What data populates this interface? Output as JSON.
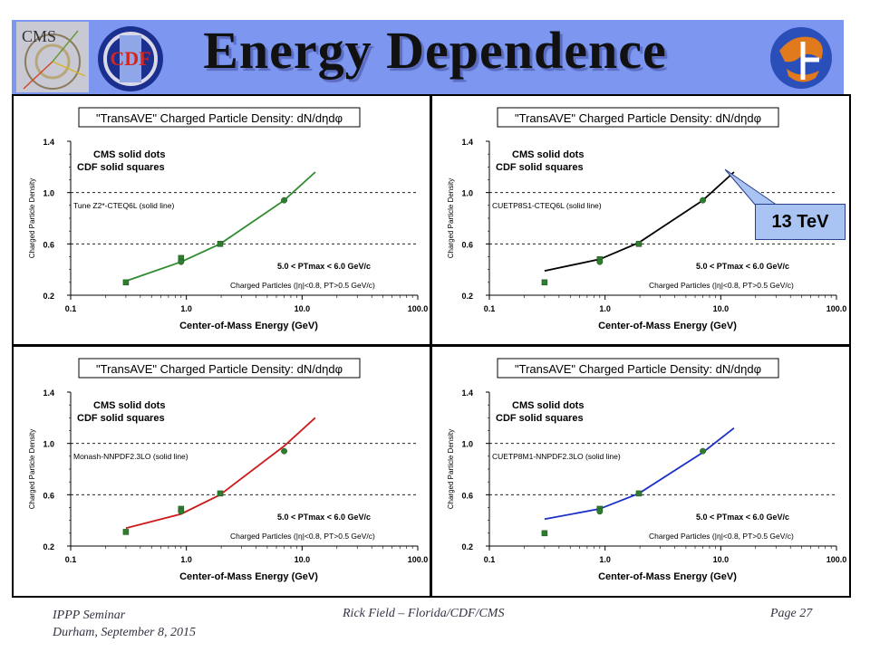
{
  "slide": {
    "title": "Energy Dependence",
    "footer_left_1": "IPPP Seminar",
    "footer_left_2": "Durham, September 8, 2015",
    "footer_center": "Rick Field – Florida/CDF/CMS",
    "footer_right": "Page 27",
    "callout": "13 TeV",
    "logos": {
      "cms": "CMS",
      "cdf": "CDF"
    }
  },
  "chart_data": [
    {
      "type": "line",
      "title": "\"TransAVE\" Charged Particle Density: dN/dηdφ",
      "xlabel": "Center-of-Mass Energy  (GeV)",
      "ylabel": "Charged Particle Density",
      "x_scale": "log",
      "xlim": [
        0.1,
        100.0
      ],
      "ylim": [
        0.2,
        1.4
      ],
      "x_ticks": [
        "0.1",
        "1.0",
        "10.0",
        "100.0"
      ],
      "y_ticks": [
        "0.2",
        "0.6",
        "1.0",
        "1.4"
      ],
      "legend_text": [
        "CMS solid dots",
        "CDF solid squares"
      ],
      "tune_label": "Tune Z2*-CTEQ6L (solid line)",
      "ptmax_label": "5.0 < PTmax < 6.0 GeV/c",
      "cuts_label": "Charged Particles (|η|<0.8, PT>0.5 GeV/c)",
      "line_color": "#2e8b2e",
      "series": [
        {
          "name": "Tune Z2*-CTEQ6L (solid line)",
          "x": [
            0.3,
            0.9,
            1.96,
            7.0,
            13.0
          ],
          "y": [
            0.31,
            0.46,
            0.6,
            0.94,
            1.16
          ]
        },
        {
          "name": "CMS solid dots",
          "x": [
            0.9,
            7.0
          ],
          "y": [
            0.46,
            0.94
          ]
        },
        {
          "name": "CDF solid squares",
          "x": [
            0.3,
            0.9,
            1.96
          ],
          "y": [
            0.3,
            0.49,
            0.6
          ]
        }
      ]
    },
    {
      "type": "line",
      "title": "\"TransAVE\" Charged Particle Density: dN/dηdφ",
      "xlabel": "Center-of-Mass Energy  (GeV)",
      "ylabel": "Charged Particle Density",
      "x_scale": "log",
      "xlim": [
        0.1,
        100.0
      ],
      "ylim": [
        0.2,
        1.4
      ],
      "x_ticks": [
        "0.1",
        "1.0",
        "10.0",
        "100.0"
      ],
      "y_ticks": [
        "0.2",
        "0.6",
        "1.0",
        "1.4"
      ],
      "legend_text": [
        "CMS solid dots",
        "CDF solid squares"
      ],
      "tune_label": "CUETP8S1-CTEQ6L (solid line)",
      "ptmax_label": "5.0 < PTmax < 6.0 GeV/c",
      "cuts_label": "Charged Particles (|η|<0.8, PT>0.5 GeV/c)",
      "line_color": "#000000",
      "series": [
        {
          "name": "CUETP8S1-CTEQ6L (solid line)",
          "x": [
            0.3,
            0.9,
            1.96,
            7.0,
            13.0
          ],
          "y": [
            0.39,
            0.48,
            0.61,
            0.94,
            1.16
          ]
        },
        {
          "name": "CMS solid dots",
          "x": [
            0.9,
            7.0
          ],
          "y": [
            0.46,
            0.94
          ]
        },
        {
          "name": "CDF solid squares",
          "x": [
            0.3,
            0.9,
            1.96
          ],
          "y": [
            0.3,
            0.48,
            0.6
          ]
        }
      ]
    },
    {
      "type": "line",
      "title": "\"TransAVE\" Charged Particle Density: dN/dηdφ",
      "xlabel": "Center-of-Mass Energy  (GeV)",
      "ylabel": "Charged Particle Density",
      "x_scale": "log",
      "xlim": [
        0.1,
        100.0
      ],
      "ylim": [
        0.2,
        1.4
      ],
      "x_ticks": [
        "0.1",
        "1.0",
        "10.0",
        "100.0"
      ],
      "y_ticks": [
        "0.2",
        "0.6",
        "1.0",
        "1.4"
      ],
      "legend_text": [
        "CMS solid dots",
        "CDF solid squares"
      ],
      "tune_label": "Monash-NNPDF2.3LO (solid line)",
      "ptmax_label": "5.0 < PTmax < 6.0 GeV/c",
      "cuts_label": "Charged Particles (|η|<0.8, PT>0.5 GeV/c)",
      "line_color": "#cc1a1a",
      "series": [
        {
          "name": "Monash-NNPDF2.3LO (solid line)",
          "x": [
            0.3,
            0.9,
            1.96,
            7.0,
            13.0
          ],
          "y": [
            0.34,
            0.45,
            0.6,
            0.98,
            1.2
          ]
        },
        {
          "name": "CMS solid dots",
          "x": [
            0.9,
            7.0
          ],
          "y": [
            0.47,
            0.94
          ]
        },
        {
          "name": "CDF solid squares",
          "x": [
            0.3,
            0.9,
            1.96
          ],
          "y": [
            0.31,
            0.49,
            0.61
          ]
        }
      ]
    },
    {
      "type": "line",
      "title": "\"TransAVE\" Charged Particle Density: dN/dηdφ",
      "xlabel": "Center-of-Mass Energy  (GeV)",
      "ylabel": "Charged Particle Density",
      "x_scale": "log",
      "xlim": [
        0.1,
        100.0
      ],
      "ylim": [
        0.2,
        1.4
      ],
      "x_ticks": [
        "0.1",
        "1.0",
        "10.0",
        "100.0"
      ],
      "y_ticks": [
        "0.2",
        "0.6",
        "1.0",
        "1.4"
      ],
      "legend_text": [
        "CMS solid dots",
        "CDF solid squares"
      ],
      "tune_label": "CUETP8M1-NNPDF2.3LO (solid line)",
      "ptmax_label": "5.0 < PTmax < 6.0 GeV/c",
      "cuts_label": "Charged Particles (|η|<0.8, PT>0.5 GeV/c)",
      "line_color": "#1a2fc8",
      "series": [
        {
          "name": "CUETP8M1-NNPDF2.3LO (solid line)",
          "x": [
            0.3,
            0.9,
            1.96,
            7.0,
            13.0
          ],
          "y": [
            0.41,
            0.49,
            0.61,
            0.93,
            1.12
          ]
        },
        {
          "name": "CMS solid dots",
          "x": [
            0.9,
            7.0
          ],
          "y": [
            0.47,
            0.94
          ]
        },
        {
          "name": "CDF solid squares",
          "x": [
            0.3,
            0.9,
            1.96
          ],
          "y": [
            0.3,
            0.49,
            0.61
          ]
        }
      ]
    }
  ]
}
